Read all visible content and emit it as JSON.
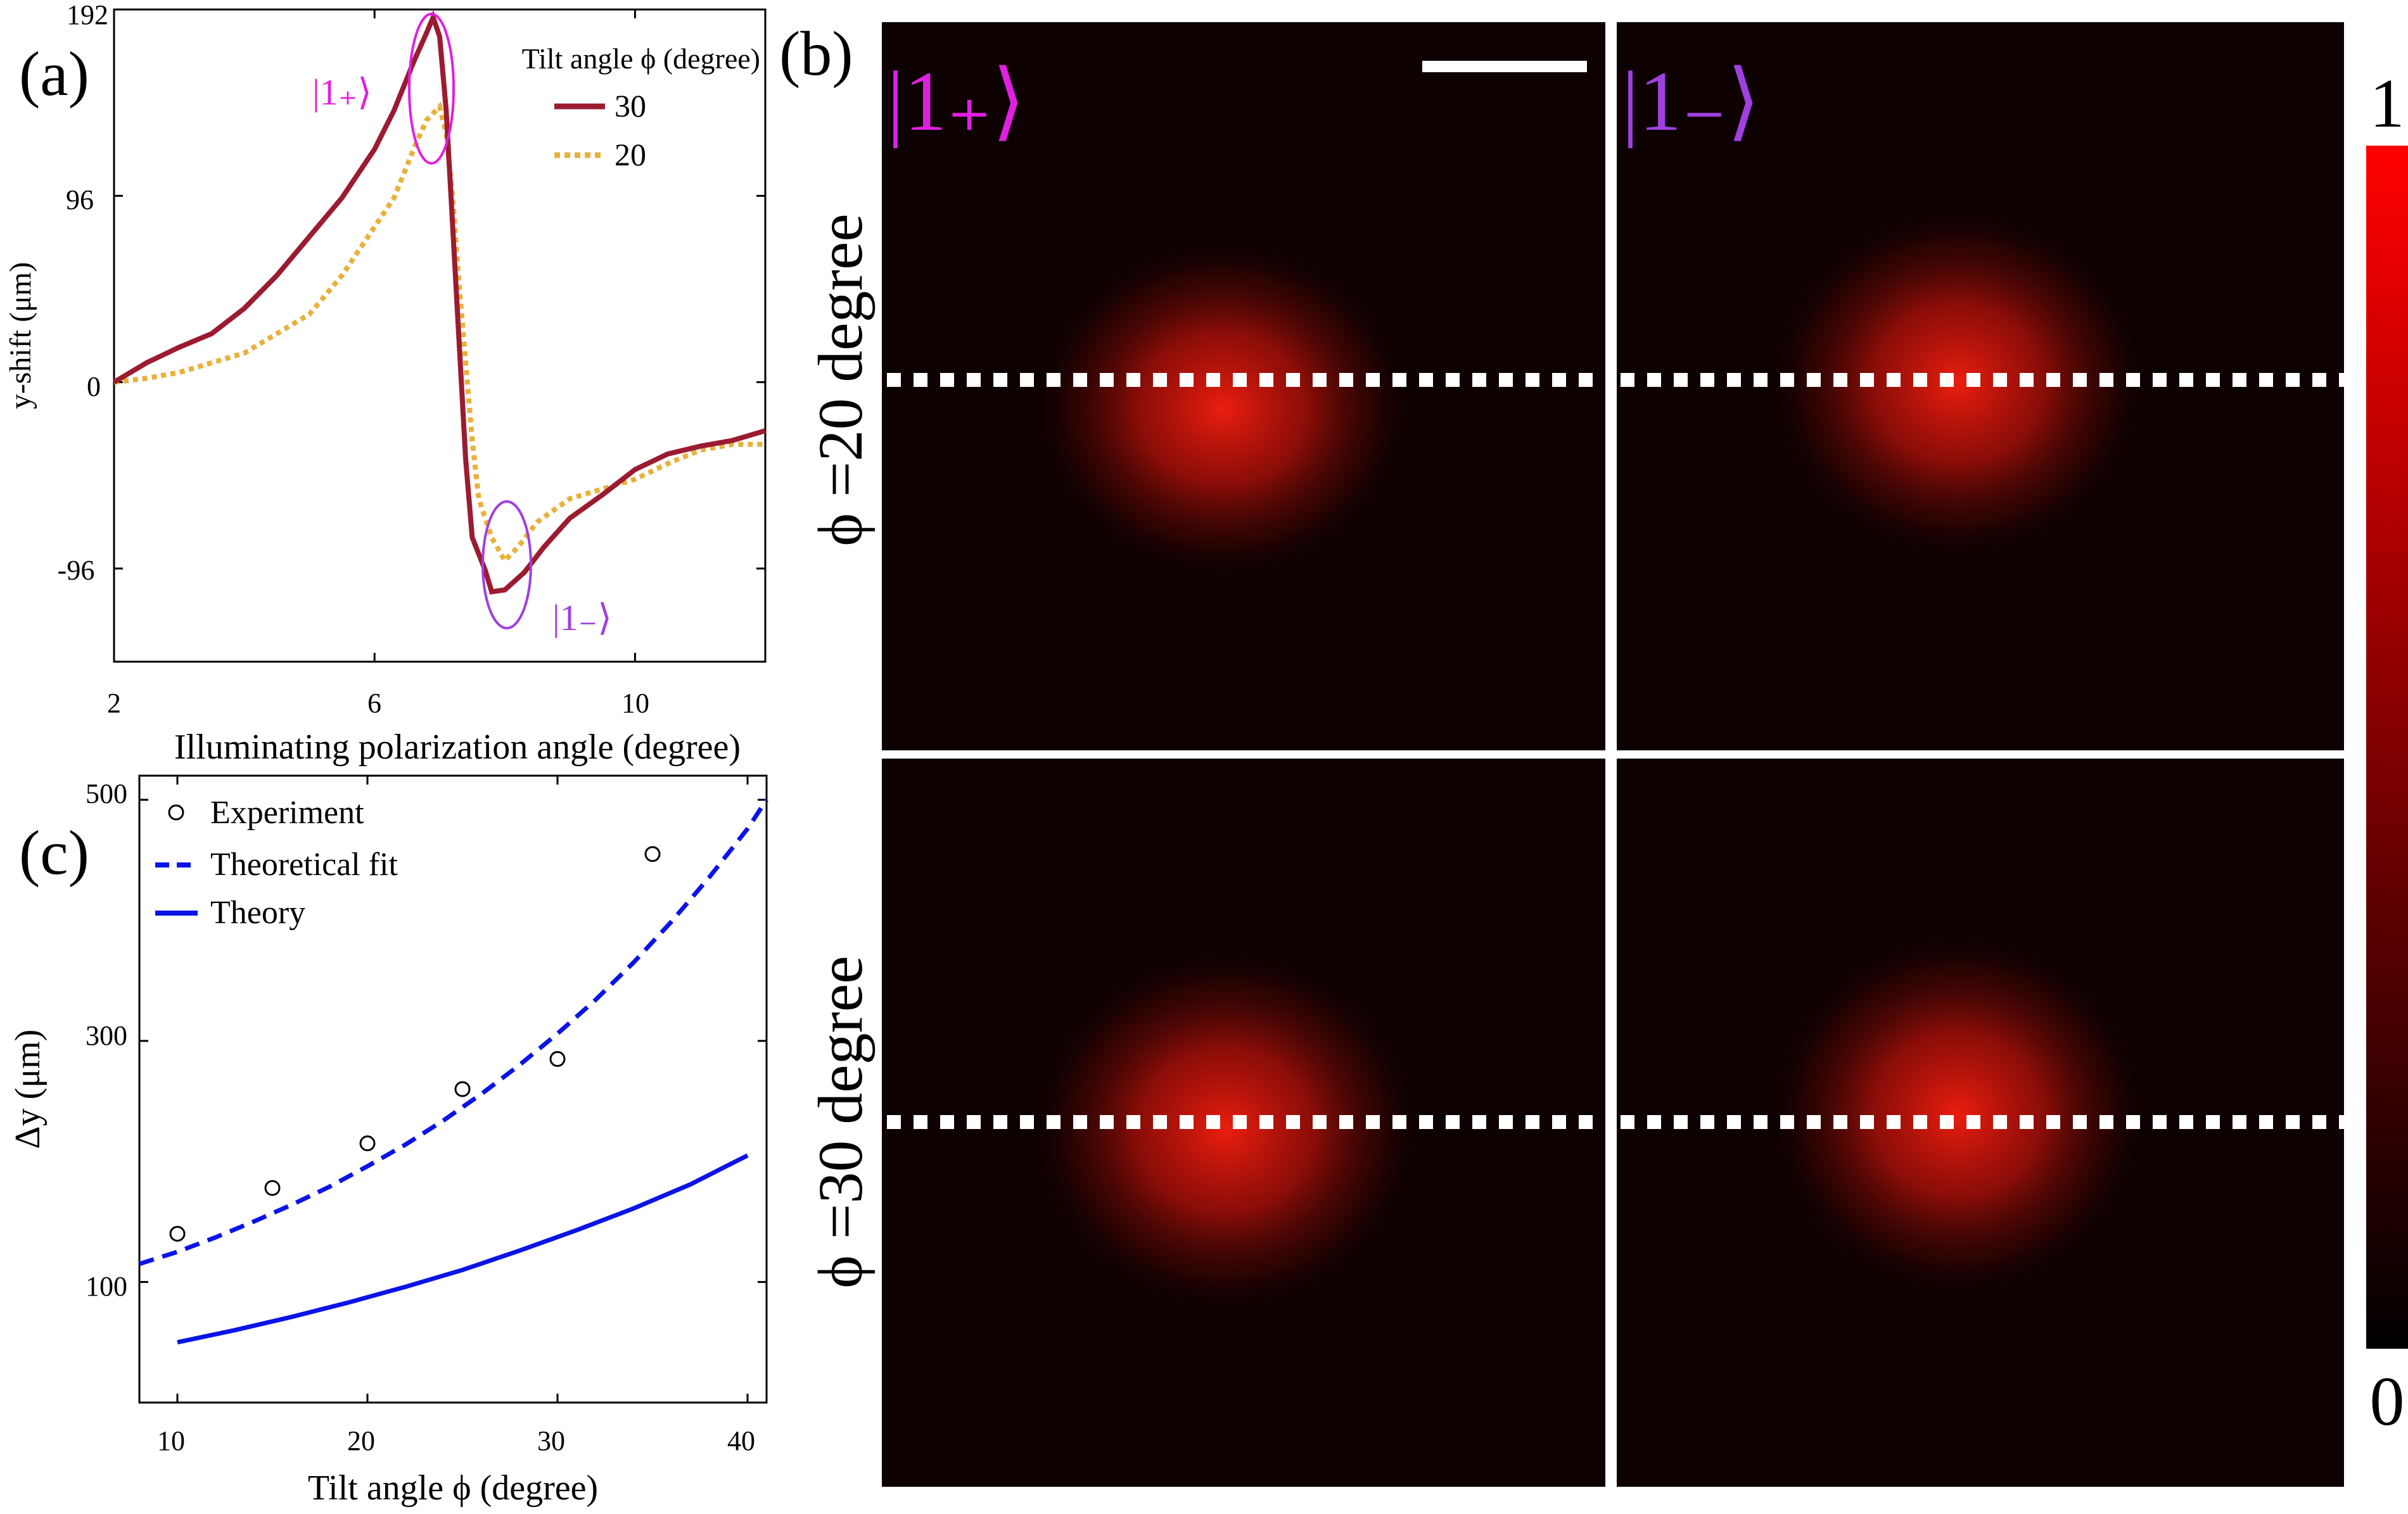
{
  "panel_labels": {
    "a": "(a)",
    "b": "(b)",
    "c": "(c)"
  },
  "colors": {
    "series_30": "#9b1b30",
    "series_20": "#e8b13c",
    "marker_plus": "#e020e0",
    "marker_minus": "#a040e0",
    "theory_blue": "#0a14e6",
    "frame": "#000000",
    "scale_bar": "#ffffff",
    "dash_line": "#ffffff"
  },
  "chart_data": [
    {
      "id": "a",
      "type": "line",
      "title": "",
      "xlabel": "Illuminating polarization angle (degree)",
      "ylabel": "y-shift (μm)",
      "xlim": [
        2,
        12
      ],
      "ylim": [
        -144,
        192
      ],
      "xticks": [
        2,
        6,
        10
      ],
      "yticks": [
        -96,
        0,
        96,
        192
      ],
      "xtick_labels": [
        "2",
        "6",
        "10"
      ],
      "ytick_labels": [
        "-96",
        "0",
        "96",
        "192"
      ],
      "legend": {
        "title": "Tilt angle ϕ (degree)",
        "position": "top-right"
      },
      "series": [
        {
          "name": "30",
          "style": "solid",
          "x": [
            2,
            2.5,
            3,
            3.5,
            4,
            4.5,
            5,
            5.5,
            6,
            6.3,
            6.6,
            6.8,
            6.9,
            7,
            7.1,
            7.2,
            7.3,
            7.4,
            7.5,
            7.7,
            7.8,
            8,
            8.3,
            8.6,
            9,
            9.5,
            10,
            10.5,
            11,
            11.5,
            12
          ],
          "values": [
            0,
            10,
            18,
            25,
            38,
            55,
            75,
            95,
            120,
            140,
            165,
            180,
            188,
            178,
            140,
            80,
            20,
            -40,
            -80,
            -97,
            -108,
            -107,
            -98,
            -85,
            -70,
            -58,
            -45,
            -37,
            -33,
            -30,
            -25
          ]
        },
        {
          "name": "20",
          "style": "dotted",
          "x": [
            2,
            2.5,
            3,
            3.5,
            4,
            4.5,
            5,
            5.5,
            6,
            6.3,
            6.6,
            6.8,
            7,
            7.1,
            7.2,
            7.3,
            7.4,
            7.5,
            7.6,
            7.8,
            8,
            8.2,
            8.5,
            9,
            9.5,
            10,
            10.5,
            11,
            11.5,
            12
          ],
          "values": [
            0,
            2,
            5,
            10,
            15,
            25,
            35,
            55,
            80,
            95,
            120,
            135,
            142,
            128,
            95,
            50,
            10,
            -30,
            -60,
            -80,
            -92,
            -85,
            -72,
            -60,
            -55,
            -50,
            -42,
            -35,
            -32,
            -32
          ]
        }
      ],
      "annotations": [
        {
          "label": "|1₊⟩",
          "x": 6.9,
          "y": 150,
          "color": "marker_plus"
        },
        {
          "label": "|1₋⟩",
          "x": 7.9,
          "y": -95,
          "color": "marker_minus"
        }
      ]
    },
    {
      "id": "c",
      "type": "scatter",
      "title": "",
      "xlabel": "Tilt angle ϕ (degree)",
      "ylabel": "Δy (μm)",
      "xlim": [
        8,
        41
      ],
      "ylim": [
        0,
        520
      ],
      "xticks": [
        10,
        20,
        30,
        40
      ],
      "yticks": [
        100,
        300,
        500
      ],
      "xtick_labels": [
        "10",
        "20",
        "30",
        "40"
      ],
      "ytick_labels": [
        "100",
        "300",
        "500"
      ],
      "legend": {
        "position": "top-left"
      },
      "series": [
        {
          "name": "Experiment",
          "style": "circles",
          "x": [
            10,
            15,
            20,
            25,
            30,
            35
          ],
          "values": [
            140,
            178,
            215,
            260,
            285,
            455
          ]
        },
        {
          "name": "Theoretical fit",
          "style": "dashed",
          "x": [
            8,
            10,
            12,
            14,
            16,
            18,
            20,
            22,
            24,
            26,
            28,
            30,
            32,
            34,
            36,
            38,
            40,
            41
          ],
          "values": [
            115,
            125,
            137,
            150,
            164,
            179,
            196,
            214,
            234,
            256,
            280,
            306,
            334,
            365,
            399,
            436,
            476,
            500
          ]
        },
        {
          "name": "Theory",
          "style": "solid",
          "x": [
            10,
            13,
            16,
            19,
            22,
            25,
            28,
            31,
            34,
            37,
            40
          ],
          "values": [
            50,
            60,
            71,
            83,
            96,
            110,
            126,
            143,
            161,
            181,
            205
          ]
        }
      ]
    }
  ],
  "panel_b": {
    "row_labels": [
      "ϕ =20 degree",
      "ϕ =30 degree"
    ],
    "column_labels": [
      "|1₊⟩",
      "|1₋⟩"
    ],
    "colorbar": {
      "max_label": "1",
      "min_label": "0"
    }
  }
}
